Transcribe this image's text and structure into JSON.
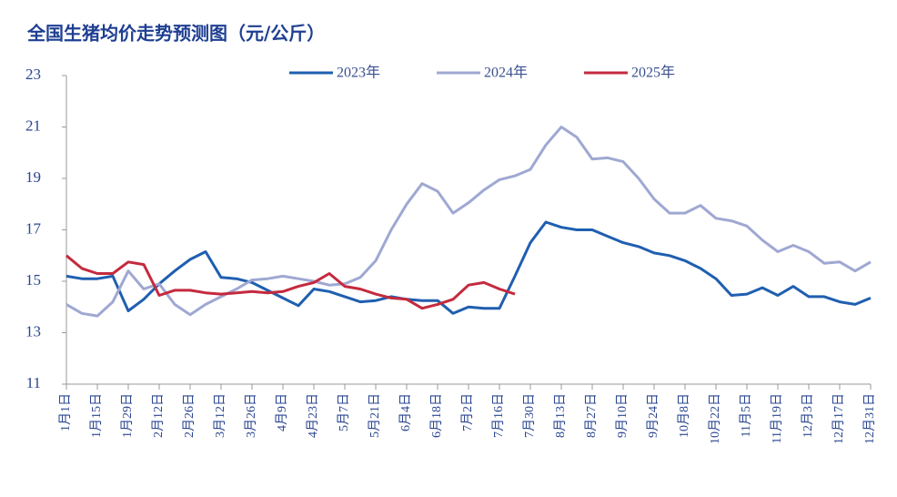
{
  "chart_data": {
    "type": "line",
    "title": "全国生猪均价走势预测图（元/公斤）",
    "categories": [
      "1月1日",
      null,
      "1月15日",
      null,
      "1月29日",
      null,
      "2月12日",
      null,
      "2月26日",
      null,
      "3月12日",
      null,
      "3月26日",
      null,
      "4月9日",
      null,
      "4月23日",
      null,
      "5月7日",
      null,
      "5月21日",
      null,
      "6月4日",
      null,
      "6月18日",
      null,
      "7月2日",
      null,
      "7月16日",
      null,
      "7月30日",
      null,
      "8月13日",
      null,
      "8月27日",
      null,
      "9月10日",
      null,
      "9月24日",
      null,
      "10月8日",
      null,
      "10月22日",
      null,
      "11月5日",
      null,
      "11月19日",
      null,
      "12月3日",
      null,
      "12月17日",
      null,
      "12月31日"
    ],
    "series": [
      {
        "name": "2023年",
        "color": "#1f5fb0",
        "values": [
          15.2,
          15.1,
          15.1,
          15.2,
          13.85,
          14.3,
          14.9,
          15.4,
          15.85,
          16.15,
          15.15,
          15.1,
          14.95,
          14.65,
          14.35,
          14.05,
          14.7,
          14.6,
          14.4,
          14.2,
          14.25,
          14.4,
          14.3,
          14.25,
          14.25,
          13.75,
          14.0,
          13.95,
          13.95,
          15.2,
          16.5,
          17.3,
          17.1,
          17.0,
          17.0,
          16.75,
          16.5,
          16.35,
          16.1,
          16.0,
          15.8,
          15.5,
          15.1,
          14.45,
          14.5,
          14.75,
          14.45,
          14.8,
          14.4,
          14.4,
          14.2,
          14.1,
          14.35
        ]
      },
      {
        "name": "2024年",
        "color": "#9fa8d2",
        "values": [
          14.1,
          13.75,
          13.65,
          14.2,
          15.4,
          14.7,
          14.9,
          14.1,
          13.7,
          14.1,
          14.4,
          14.7,
          15.05,
          15.1,
          15.2,
          15.1,
          15.0,
          14.85,
          14.9,
          15.15,
          15.8,
          17.0,
          18.0,
          18.8,
          18.5,
          17.65,
          18.05,
          18.55,
          18.95,
          19.1,
          19.35,
          20.3,
          21.0,
          20.6,
          19.75,
          19.8,
          19.65,
          19.0,
          18.2,
          17.65,
          17.65,
          17.95,
          17.45,
          17.35,
          17.15,
          16.6,
          16.15,
          16.4,
          16.15,
          15.7,
          15.75,
          15.4,
          15.75
        ]
      },
      {
        "name": "2025年",
        "color": "#c42a3e",
        "values": [
          16.0,
          15.5,
          15.3,
          15.3,
          15.75,
          15.65,
          14.45,
          14.65,
          14.65,
          14.55,
          14.5,
          14.55,
          14.6,
          14.55,
          14.6,
          14.8,
          14.95,
          15.3,
          14.8,
          14.7,
          14.5,
          14.35,
          14.3,
          13.95,
          14.1,
          14.3,
          14.85,
          14.95,
          14.7,
          14.5,
          null,
          null,
          null,
          null,
          null,
          null,
          null,
          null,
          null,
          null,
          null,
          null,
          null,
          null,
          null,
          null,
          null,
          null,
          null,
          null,
          null,
          null,
          null
        ]
      }
    ],
    "ylim": [
      11,
      23
    ],
    "yticks": [
      11,
      13,
      15,
      17,
      19,
      21,
      23
    ],
    "grid": false,
    "legend": "top"
  }
}
